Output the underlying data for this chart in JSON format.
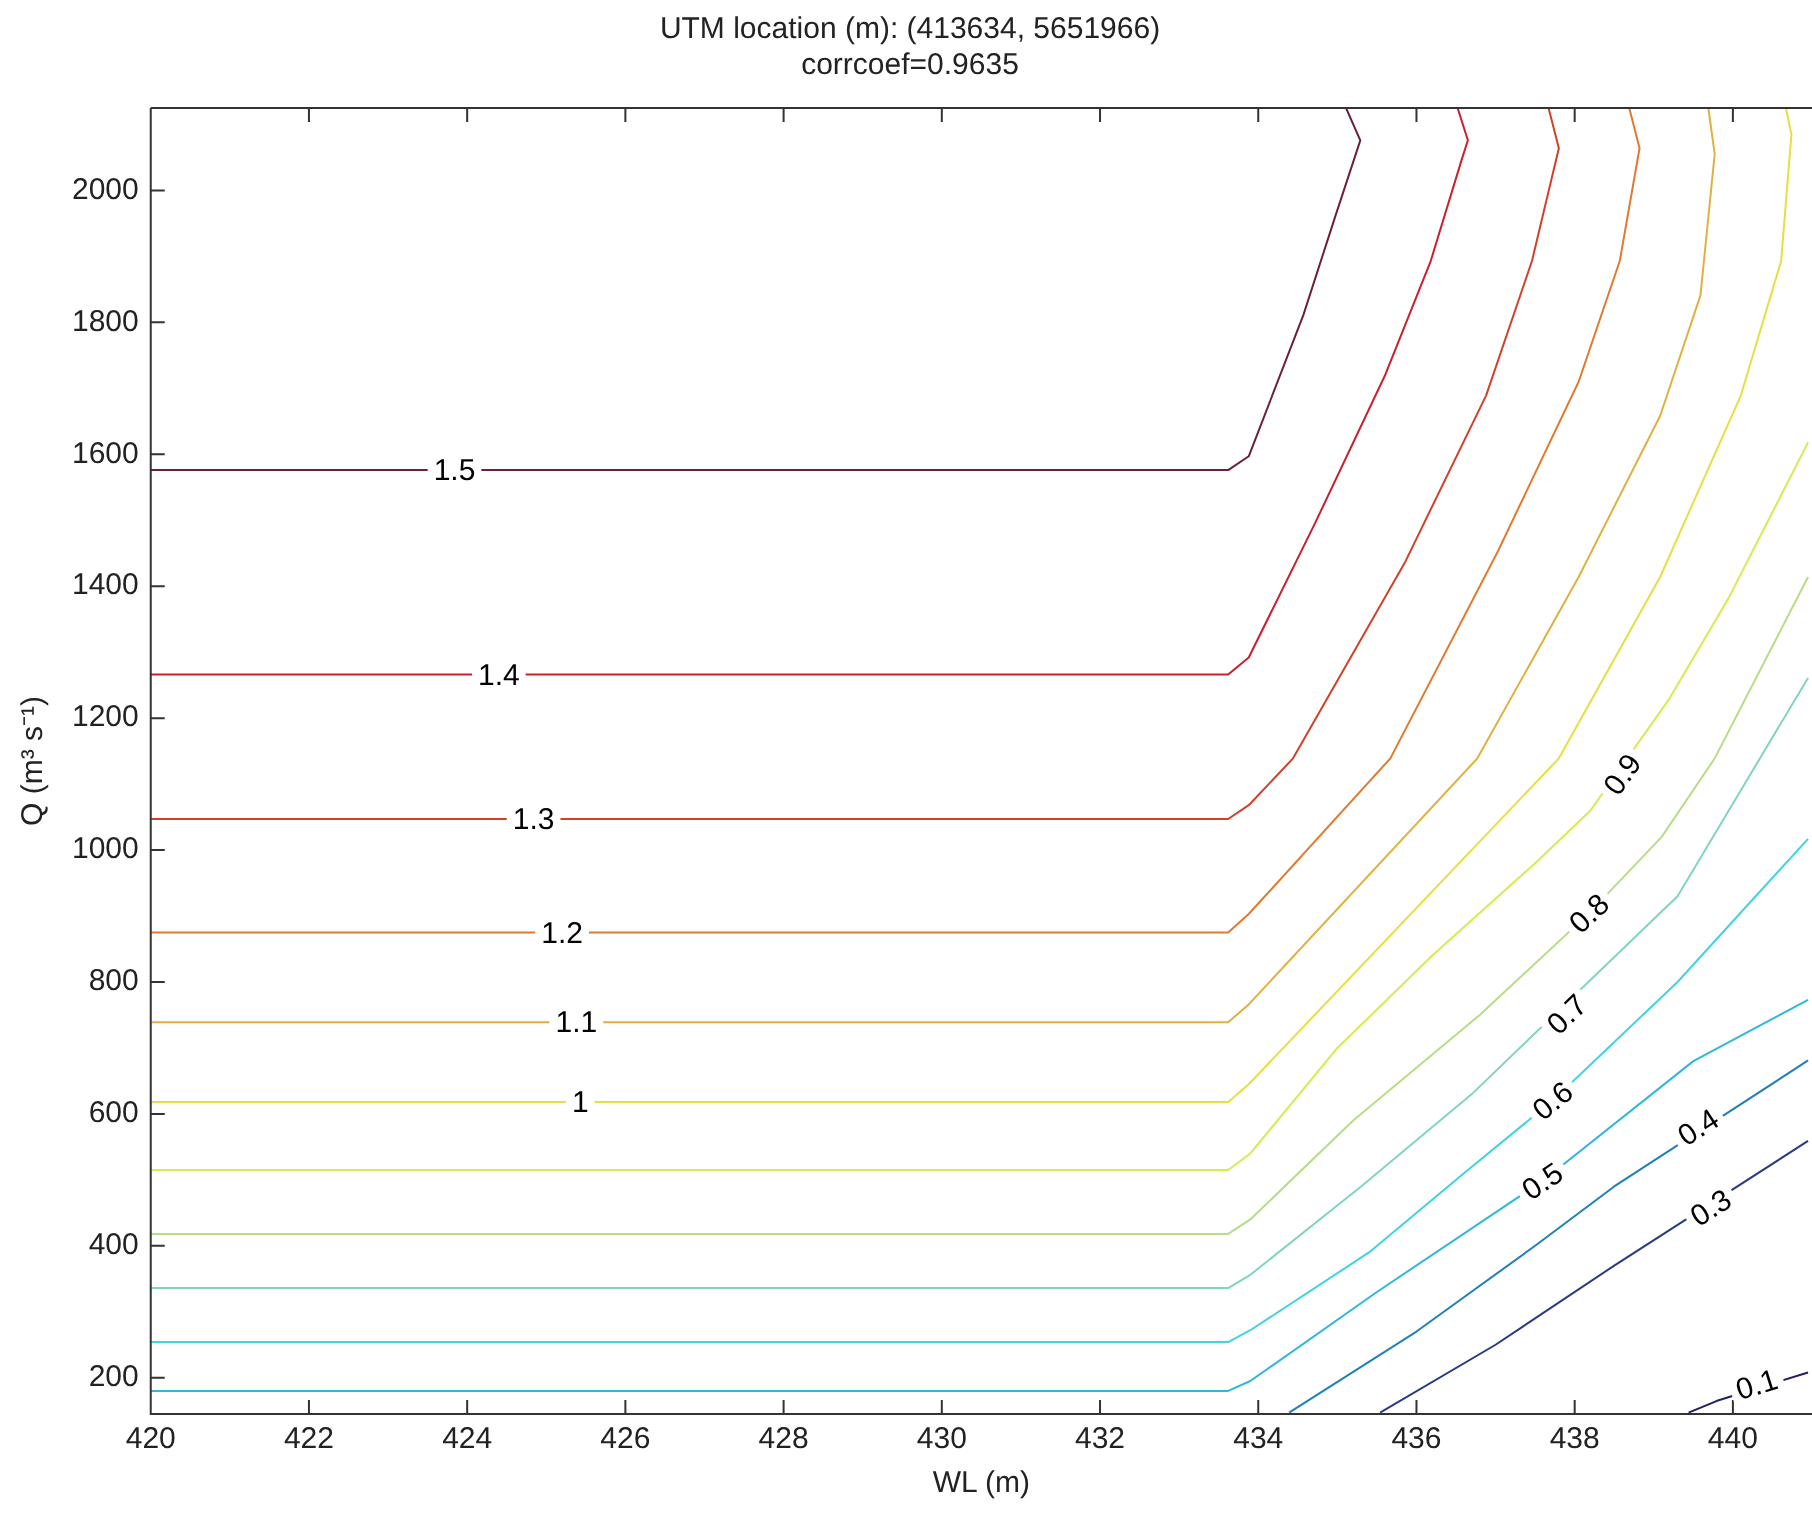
{
  "chart_data": {
    "type": "line",
    "title": "UTM location (m): (413634, 5651966)",
    "subtitle": "corrcoef=0.9635",
    "xlabel": "WL (m)",
    "ylabel": "Q (m³ s⁻¹)",
    "xlim": [
      420,
      441
    ],
    "xticks": [
      420,
      422,
      424,
      426,
      428,
      430,
      432,
      434,
      436,
      438,
      440
    ],
    "ylim": [
      145,
      2125
    ],
    "yticks": [
      200,
      400,
      600,
      800,
      1000,
      1200,
      1400,
      1600,
      1800,
      2000
    ],
    "grid": false,
    "legend": false,
    "marker": "none",
    "line_style": "solid",
    "series": [
      {
        "color": "#6b2035",
        "x": [
          420,
          433.62,
          433.88,
          434.57,
          434.98,
          435.29,
          435.11
        ],
        "values": [
          1576,
          1576,
          1597,
          1811,
          1963,
          2076,
          2125
        ]
      },
      {
        "color": "#c8202f",
        "x": [
          420,
          433.62,
          433.88,
          434.72,
          435.6,
          436.18,
          436.57,
          436.65,
          436.52
        ],
        "values": [
          1266,
          1266,
          1292,
          1496,
          1719,
          1893,
          2046,
          2076,
          2125
        ]
      },
      {
        "color": "#d0402a",
        "x": [
          420,
          433.62,
          433.88,
          434.44,
          435.85,
          436.88,
          437.46,
          437.8,
          437.67
        ],
        "values": [
          1047,
          1047,
          1068,
          1139,
          1435,
          1689,
          1893,
          2064,
          2125
        ]
      },
      {
        "color": "#e07a30",
        "x": [
          420,
          433.62,
          433.88,
          435.67,
          437.03,
          438.05,
          438.57,
          438.82,
          438.69
        ],
        "values": [
          875,
          875,
          903,
          1139,
          1453,
          1710,
          1893,
          2064,
          2125
        ]
      },
      {
        "color": "#e0b040",
        "x": [
          420,
          433.62,
          433.88,
          436.77,
          438.05,
          439.08,
          439.59,
          439.77,
          439.69
        ],
        "values": [
          739,
          739,
          766,
          1139,
          1414,
          1658,
          1841,
          2055,
          2125
        ]
      },
      {
        "color": "#e4e040",
        "x": [
          420,
          433.62,
          433.88,
          437.8,
          439.08,
          440.1,
          440.61,
          440.74,
          440.67
        ],
        "values": [
          618,
          618,
          645,
          1139,
          1414,
          1689,
          1893,
          2085,
          2125
        ]
      },
      {
        "color": "#d4ec50",
        "x": [
          420,
          433.62,
          433.9,
          435,
          436.2,
          437.5,
          438.2,
          439.2,
          439.95,
          440.95
        ],
        "values": [
          515,
          515,
          540,
          700,
          840,
          980,
          1060,
          1230,
          1383,
          1618
        ]
      },
      {
        "color": "#b8dc88",
        "x": [
          420,
          433.62,
          433.9,
          435.2,
          436.8,
          438.18,
          439.1,
          439.77,
          440.95
        ],
        "values": [
          418,
          418,
          440,
          590,
          750,
          904,
          1020,
          1139,
          1414
        ]
      },
      {
        "color": "#80d4c0",
        "x": [
          420,
          433.62,
          433.9,
          435.3,
          436.7,
          439.3,
          440.95
        ],
        "values": [
          336,
          336,
          356,
          490,
          630,
          930,
          1261
        ]
      },
      {
        "color": "#40d4e0",
        "x": [
          420,
          433.62,
          433.9,
          435.4,
          436.6,
          437.72,
          439.3,
          440.95
        ],
        "values": [
          254,
          254,
          272,
          390,
          510,
          620,
          800,
          1017
        ]
      },
      {
        "color": "#30b8d8",
        "x": [
          420,
          433.62,
          433.9,
          435.5,
          437.59,
          439.5,
          440.95
        ],
        "values": [
          180,
          180,
          195,
          330,
          498,
          680,
          773
        ]
      },
      {
        "color": "#2080b8",
        "x": [
          434.39,
          436,
          437.5,
          438.5,
          440.95
        ],
        "values": [
          147,
          270,
          400,
          490,
          681
        ]
      },
      {
        "color": "#283c80",
        "x": [
          435.54,
          437,
          438.5,
          440.95
        ],
        "values": [
          147,
          250,
          370,
          559
        ]
      },
      {
        "color": "#202060",
        "x": [
          439.44,
          439.8,
          440.95
        ],
        "values": [
          147,
          165,
          208
        ]
      }
    ],
    "annotations": [
      {
        "text": "1.5",
        "x": 423.84,
        "y": 1576
      },
      {
        "text": "1.4",
        "x": 424.4,
        "y": 1266
      },
      {
        "text": "1.3",
        "x": 424.84,
        "y": 1047
      },
      {
        "text": "1.2",
        "x": 425.2,
        "y": 875
      },
      {
        "text": "1.1",
        "x": 425.38,
        "y": 739
      },
      {
        "text": "1",
        "x": 425.43,
        "y": 618
      },
      {
        "text": "0.9",
        "x": 438.6,
        "y": 1115
      },
      {
        "text": "0.8",
        "x": 438.18,
        "y": 904
      },
      {
        "text": "0.7",
        "x": 437.9,
        "y": 751
      },
      {
        "text": "0.6",
        "x": 437.72,
        "y": 620
      },
      {
        "text": "0.5",
        "x": 437.59,
        "y": 498
      },
      {
        "text": "0.4",
        "x": 439.56,
        "y": 580
      },
      {
        "text": "0.3",
        "x": 439.72,
        "y": 458
      },
      {
        "text": "0.1",
        "x": 440.3,
        "y": 190
      }
    ]
  }
}
